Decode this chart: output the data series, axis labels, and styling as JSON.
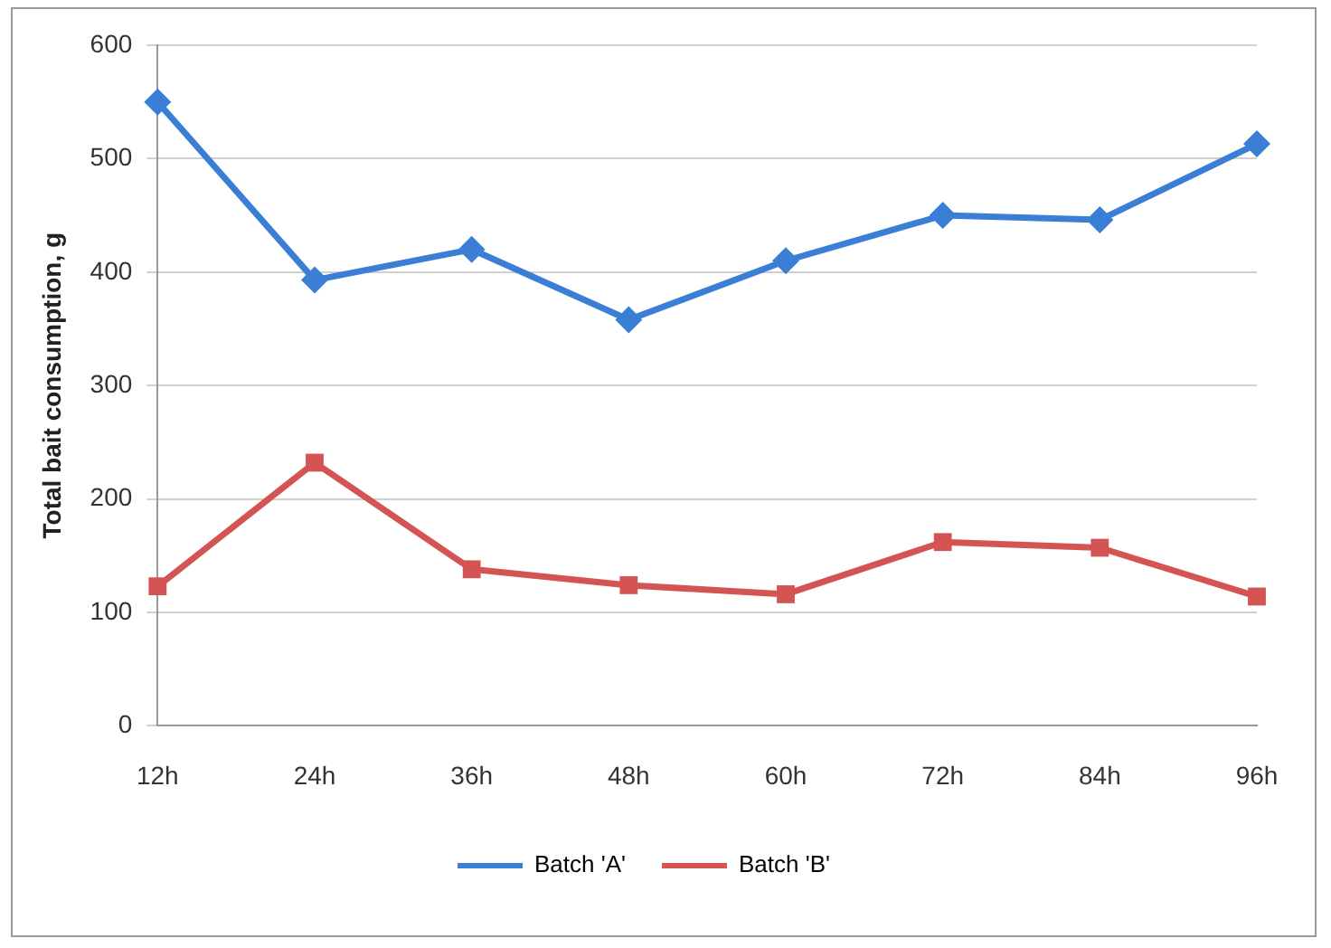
{
  "chart_data": {
    "type": "line",
    "ylabel": "Total bait consumption, g",
    "categories": [
      "12h",
      "24h",
      "36h",
      "48h",
      "60h",
      "72h",
      "84h",
      "96h"
    ],
    "series": [
      {
        "name": "Batch 'A'",
        "color": "#3a7fd5",
        "marker": "diamond",
        "values": [
          550,
          393,
          420,
          358,
          410,
          450,
          446,
          513
        ]
      },
      {
        "name": "Batch 'B'",
        "color": "#d45454",
        "marker": "square",
        "values": [
          123,
          232,
          138,
          124,
          116,
          162,
          157,
          114
        ]
      }
    ],
    "ylim": [
      0,
      600
    ],
    "yticks": [
      0,
      100,
      200,
      300,
      400,
      500,
      600
    ],
    "grid": "y",
    "legend": "bottom"
  }
}
